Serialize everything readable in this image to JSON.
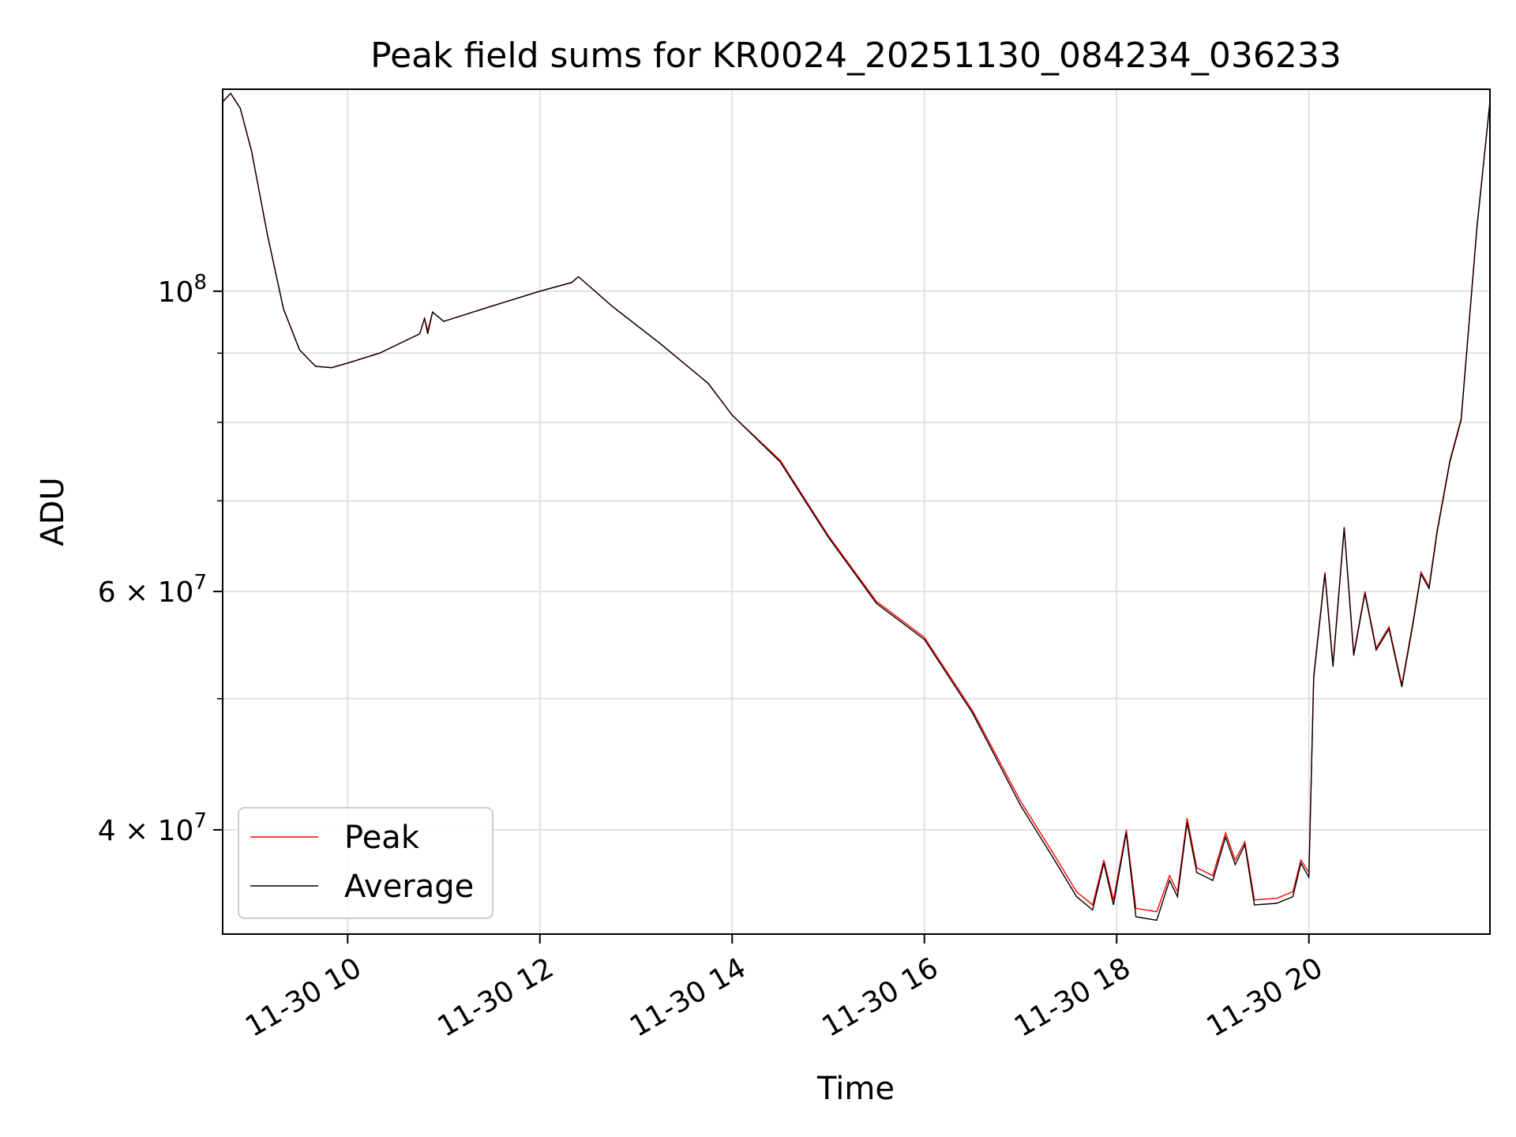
{
  "chart_data": {
    "type": "line",
    "title": "Peak field sums for KR0024_20251130_084234_036233",
    "xlabel": "Time",
    "ylabel": "ADU",
    "x_axis": {
      "kind": "datetime",
      "range": [
        "2025-11-30T08:42",
        "2025-11-30T21:53"
      ],
      "ticks": [
        "2025-11-30T10:00",
        "2025-11-30T12:00",
        "2025-11-30T14:00",
        "2025-11-30T16:00",
        "2025-11-30T18:00",
        "2025-11-30T20:00"
      ],
      "tick_labels": [
        "11-30 10",
        "11-30 12",
        "11-30 14",
        "11-30 16",
        "11-30 18",
        "11-30 20"
      ]
    },
    "y_axis": {
      "scale": "log",
      "range": [
        33500000,
        141000000
      ],
      "labeled_ticks": [
        40000000,
        60000000,
        100000000
      ],
      "tick_labels": [
        {
          "mantissa": "4",
          "base": "10",
          "exp": "7"
        },
        {
          "mantissa": "6",
          "base": "10",
          "exp": "7"
        },
        {
          "mantissa": "",
          "base": "10",
          "exp": "8"
        }
      ],
      "minor_ticks": [
        50000000,
        70000000,
        80000000,
        90000000
      ]
    },
    "grid": true,
    "legend": {
      "position": "lower-left"
    },
    "series": [
      {
        "name": "Peak",
        "color": "#ff0000",
        "points": [
          [
            "2025-11-30T08:42",
            138000000
          ],
          [
            "2025-11-30T08:47",
            140000000
          ],
          [
            "2025-11-30T08:53",
            136500000
          ],
          [
            "2025-11-30T09:00",
            127000000
          ],
          [
            "2025-11-30T09:10",
            110000000
          ],
          [
            "2025-11-30T09:20",
            97000000
          ],
          [
            "2025-11-30T09:30",
            90500000
          ],
          [
            "2025-11-30T09:40",
            88000000
          ],
          [
            "2025-11-30T09:50",
            87800000
          ],
          [
            "2025-11-30T10:00",
            88500000
          ],
          [
            "2025-11-30T10:20",
            90000000
          ],
          [
            "2025-11-30T10:45",
            93000000
          ],
          [
            "2025-11-30T10:48",
            95500000
          ],
          [
            "2025-11-30T10:50",
            93500000
          ],
          [
            "2025-11-30T10:53",
            96500000
          ],
          [
            "2025-11-30T11:00",
            95000000
          ],
          [
            "2025-11-30T11:30",
            97500000
          ],
          [
            "2025-11-30T12:00",
            100000000
          ],
          [
            "2025-11-30T12:20",
            101500000
          ],
          [
            "2025-11-30T12:24",
            102500000
          ],
          [
            "2025-11-30T12:45",
            97500000
          ],
          [
            "2025-11-30T13:15",
            91500000
          ],
          [
            "2025-11-30T13:45",
            85500000
          ],
          [
            "2025-11-30T14:00",
            81000000
          ],
          [
            "2025-11-30T14:30",
            75000000
          ],
          [
            "2025-11-30T15:00",
            66000000
          ],
          [
            "2025-11-30T15:30",
            59000000
          ],
          [
            "2025-11-30T16:00",
            55500000
          ],
          [
            "2025-11-30T16:30",
            49000000
          ],
          [
            "2025-11-30T17:00",
            42000000
          ],
          [
            "2025-11-30T17:20",
            38500000
          ],
          [
            "2025-11-30T17:35",
            36000000
          ],
          [
            "2025-11-30T17:45",
            35200000
          ],
          [
            "2025-11-30T17:52",
            38000000
          ],
          [
            "2025-11-30T17:58",
            35500000
          ],
          [
            "2025-11-30T18:06",
            40000000
          ],
          [
            "2025-11-30T18:12",
            35000000
          ],
          [
            "2025-11-30T18:25",
            34800000
          ],
          [
            "2025-11-30T18:33",
            37000000
          ],
          [
            "2025-11-30T18:38",
            36000000
          ],
          [
            "2025-11-30T18:44",
            40800000
          ],
          [
            "2025-11-30T18:50",
            37500000
          ],
          [
            "2025-11-30T19:00",
            37000000
          ],
          [
            "2025-11-30T19:08",
            39800000
          ],
          [
            "2025-11-30T19:14",
            38000000
          ],
          [
            "2025-11-30T19:20",
            39200000
          ],
          [
            "2025-11-30T19:26",
            35500000
          ],
          [
            "2025-11-30T19:40",
            35600000
          ],
          [
            "2025-11-30T19:50",
            36000000
          ],
          [
            "2025-11-30T19:55",
            38000000
          ],
          [
            "2025-11-30T20:00",
            37200000
          ],
          [
            "2025-11-30T20:03",
            52000000
          ],
          [
            "2025-11-30T20:10",
            62000000
          ],
          [
            "2025-11-30T20:15",
            53000000
          ],
          [
            "2025-11-30T20:22",
            67000000
          ],
          [
            "2025-11-30T20:28",
            54000000
          ],
          [
            "2025-11-30T20:35",
            60000000
          ],
          [
            "2025-11-30T20:42",
            54500000
          ],
          [
            "2025-11-30T20:50",
            56500000
          ],
          [
            "2025-11-30T20:58",
            51200000
          ],
          [
            "2025-11-30T21:05",
            57000000
          ],
          [
            "2025-11-30T21:10",
            62000000
          ],
          [
            "2025-11-30T21:15",
            60500000
          ],
          [
            "2025-11-30T21:20",
            66500000
          ],
          [
            "2025-11-30T21:28",
            75000000
          ],
          [
            "2025-11-30T21:35",
            80500000
          ],
          [
            "2025-11-30T21:45",
            112000000
          ],
          [
            "2025-11-30T21:53",
            138000000
          ]
        ]
      },
      {
        "name": "Average",
        "color": "#000000",
        "points": [
          [
            "2025-11-30T08:42",
            138000000
          ],
          [
            "2025-11-30T08:47",
            140000000
          ],
          [
            "2025-11-30T08:53",
            136500000
          ],
          [
            "2025-11-30T09:00",
            127000000
          ],
          [
            "2025-11-30T09:10",
            110000000
          ],
          [
            "2025-11-30T09:20",
            97000000
          ],
          [
            "2025-11-30T09:30",
            90500000
          ],
          [
            "2025-11-30T09:40",
            88000000
          ],
          [
            "2025-11-30T09:50",
            87800000
          ],
          [
            "2025-11-30T10:00",
            88500000
          ],
          [
            "2025-11-30T10:20",
            90000000
          ],
          [
            "2025-11-30T10:45",
            93000000
          ],
          [
            "2025-11-30T10:48",
            95500000
          ],
          [
            "2025-11-30T10:50",
            93000000
          ],
          [
            "2025-11-30T10:53",
            96500000
          ],
          [
            "2025-11-30T11:00",
            95000000
          ],
          [
            "2025-11-30T11:30",
            97500000
          ],
          [
            "2025-11-30T12:00",
            100000000
          ],
          [
            "2025-11-30T12:20",
            101500000
          ],
          [
            "2025-11-30T12:24",
            102500000
          ],
          [
            "2025-11-30T12:45",
            97500000
          ],
          [
            "2025-11-30T13:15",
            91500000
          ],
          [
            "2025-11-30T13:45",
            85500000
          ],
          [
            "2025-11-30T14:00",
            81000000
          ],
          [
            "2025-11-30T14:30",
            74800000
          ],
          [
            "2025-11-30T15:00",
            65800000
          ],
          [
            "2025-11-30T15:30",
            58800000
          ],
          [
            "2025-11-30T16:00",
            55300000
          ],
          [
            "2025-11-30T16:30",
            48800000
          ],
          [
            "2025-11-30T17:00",
            41700000
          ],
          [
            "2025-11-30T17:20",
            38200000
          ],
          [
            "2025-11-30T17:35",
            35700000
          ],
          [
            "2025-11-30T17:45",
            34900000
          ],
          [
            "2025-11-30T17:52",
            37800000
          ],
          [
            "2025-11-30T17:58",
            35200000
          ],
          [
            "2025-11-30T18:06",
            39800000
          ],
          [
            "2025-11-30T18:12",
            34500000
          ],
          [
            "2025-11-30T18:25",
            34300000
          ],
          [
            "2025-11-30T18:33",
            36700000
          ],
          [
            "2025-11-30T18:38",
            35700000
          ],
          [
            "2025-11-30T18:44",
            40500000
          ],
          [
            "2025-11-30T18:50",
            37200000
          ],
          [
            "2025-11-30T19:00",
            36700000
          ],
          [
            "2025-11-30T19:08",
            39500000
          ],
          [
            "2025-11-30T19:14",
            37700000
          ],
          [
            "2025-11-30T19:20",
            39000000
          ],
          [
            "2025-11-30T19:26",
            35200000
          ],
          [
            "2025-11-30T19:40",
            35300000
          ],
          [
            "2025-11-30T19:50",
            35700000
          ],
          [
            "2025-11-30T19:55",
            37800000
          ],
          [
            "2025-11-30T20:00",
            36900000
          ],
          [
            "2025-11-30T20:03",
            51800000
          ],
          [
            "2025-11-30T20:10",
            61800000
          ],
          [
            "2025-11-30T20:15",
            52800000
          ],
          [
            "2025-11-30T20:22",
            66800000
          ],
          [
            "2025-11-30T20:28",
            53800000
          ],
          [
            "2025-11-30T20:35",
            59800000
          ],
          [
            "2025-11-30T20:42",
            54300000
          ],
          [
            "2025-11-30T20:50",
            56300000
          ],
          [
            "2025-11-30T20:58",
            51000000
          ],
          [
            "2025-11-30T21:05",
            56800000
          ],
          [
            "2025-11-30T21:10",
            61800000
          ],
          [
            "2025-11-30T21:15",
            60300000
          ],
          [
            "2025-11-30T21:20",
            66300000
          ],
          [
            "2025-11-30T21:28",
            74800000
          ],
          [
            "2025-11-30T21:35",
            80300000
          ],
          [
            "2025-11-30T21:45",
            111800000
          ],
          [
            "2025-11-30T21:53",
            138000000
          ]
        ]
      }
    ]
  }
}
